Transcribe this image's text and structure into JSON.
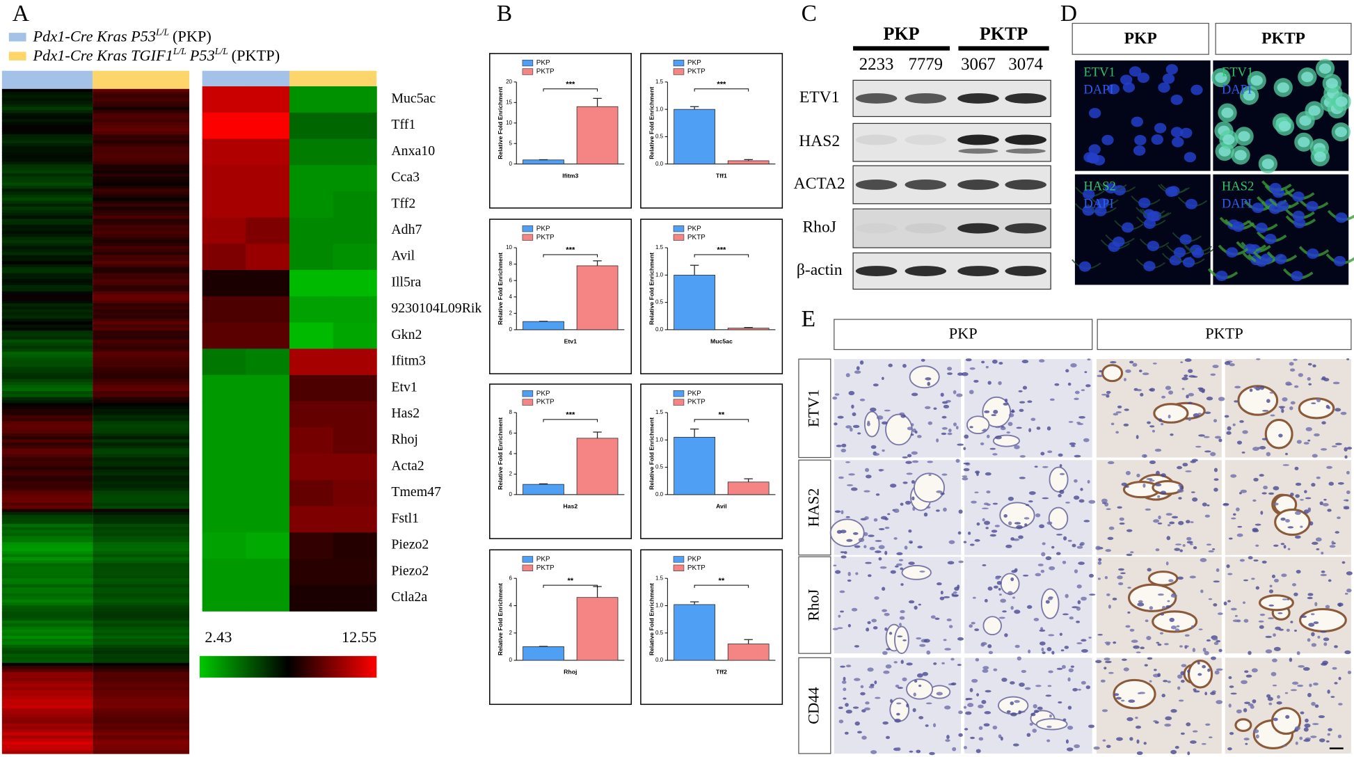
{
  "panel_labels": [
    "A",
    "B",
    "C",
    "D",
    "E"
  ],
  "heatmap": {
    "groups": [
      {
        "color": "#a4c2e8",
        "parts": [
          {
            "kind": "italic",
            "text": "Pdx1-Cre Kras P53"
          },
          {
            "kind": "sup",
            "text": "L/L"
          },
          {
            "kind": "plain",
            "text": "(PKP)"
          }
        ]
      },
      {
        "color": "#fcd56b",
        "parts": [
          {
            "kind": "italic",
            "text": "Pdx1-Cre Kras TGIF1"
          },
          {
            "kind": "sup",
            "text": "L/L"
          },
          {
            "kind": "italic",
            "text": "P53"
          },
          {
            "kind": "sup",
            "text": "L/L"
          },
          {
            "kind": "plain",
            "text": "(PKTP)"
          }
        ]
      }
    ],
    "genes": [
      "Muc5ac",
      "Tff1",
      "Anxa10",
      "Cca3",
      "Tff2",
      "Adh7",
      "Avil",
      "Ill5ra",
      "9230104L09Rik",
      "Gkn2",
      "Ifitm3",
      "Etv1",
      "Has2",
      "Rhoj",
      "Acta2",
      "Tmem47",
      "Fstl1",
      "Piezo2",
      "Piezo2",
      "Ctla2a"
    ],
    "values": [
      [
        11.5,
        11.5,
        4,
        4
      ],
      [
        12.5,
        12.5,
        5,
        5
      ],
      [
        11,
        11,
        4.5,
        4.5
      ],
      [
        10.8,
        10.8,
        4,
        4
      ],
      [
        10.8,
        10.8,
        4,
        4.2
      ],
      [
        10.5,
        10,
        4.2,
        4.2
      ],
      [
        10,
        10.5,
        4.2,
        4
      ],
      [
        8,
        8,
        3,
        3
      ],
      [
        9,
        9,
        3.6,
        3.6
      ],
      [
        9.3,
        9.3,
        3,
        3.5
      ],
      [
        4.6,
        4.4,
        10.8,
        10.8
      ],
      [
        3.8,
        3.8,
        9,
        9
      ],
      [
        3.8,
        3.8,
        9.5,
        9.5
      ],
      [
        3.8,
        3.8,
        9.8,
        9.5
      ],
      [
        3.8,
        3.8,
        10,
        10
      ],
      [
        3.8,
        3.8,
        9.5,
        9.8
      ],
      [
        3.8,
        3.8,
        10,
        10
      ],
      [
        3.6,
        3.4,
        8.5,
        8.2
      ],
      [
        3.8,
        3.8,
        8.3,
        8.3
      ],
      [
        3.8,
        3.8,
        8,
        8
      ]
    ],
    "scale_min": 2.43,
    "scale_max": 12.55
  },
  "chart_data": [
    {
      "type": "bar",
      "y_label": "Relative Fold Enrichment",
      "categories": [
        "Ifitm3"
      ],
      "annotation": "***",
      "ylim": [
        0,
        20
      ],
      "yticks": [
        0,
        5,
        10,
        15,
        20
      ],
      "series": [
        {
          "name": "PKP",
          "color": "#4f9ff5",
          "values": [
            1
          ],
          "errors": [
            0.05
          ]
        },
        {
          "name": "PKTP",
          "color": "#f58585",
          "values": [
            14
          ],
          "errors": [
            2
          ]
        }
      ]
    },
    {
      "type": "bar",
      "y_label": "Relative Fold Enrichment",
      "categories": [
        "Tff1"
      ],
      "annotation": "***",
      "ylim": [
        0,
        1.5
      ],
      "yticks": [
        {
          "value": 0,
          "label": "0.0"
        },
        {
          "value": 0.5,
          "label": "0.5"
        },
        {
          "value": 1,
          "label": "1.0"
        },
        {
          "value": 1.5,
          "label": "1.5"
        }
      ],
      "series": [
        {
          "name": "PKP",
          "color": "#4f9ff5",
          "values": [
            1
          ],
          "errors": [
            0.05
          ]
        },
        {
          "name": "PKTP",
          "color": "#f58585",
          "values": [
            0.06
          ],
          "errors": [
            0.02
          ]
        }
      ]
    },
    {
      "type": "bar",
      "y_label": "Relative Fold Enrichment",
      "categories": [
        "Etv1"
      ],
      "annotation": "***",
      "ylim": [
        0,
        10
      ],
      "yticks": [
        0,
        2,
        4,
        6,
        8,
        10
      ],
      "series": [
        {
          "name": "PKP",
          "color": "#4f9ff5",
          "values": [
            1
          ],
          "errors": [
            0.03
          ]
        },
        {
          "name": "PKTP",
          "color": "#f58585",
          "values": [
            7.8
          ],
          "errors": [
            0.6
          ]
        }
      ]
    },
    {
      "type": "bar",
      "y_label": "Relative Fold Enrichment",
      "categories": [
        "Muc5ac"
      ],
      "annotation": "***",
      "ylim": [
        0,
        1.5
      ],
      "yticks": [
        {
          "value": 0,
          "label": "0.0"
        },
        {
          "value": 0.5,
          "label": "0.5"
        },
        {
          "value": 1,
          "label": "1.0"
        },
        {
          "value": 1.5,
          "label": "1.5"
        }
      ],
      "series": [
        {
          "name": "PKP",
          "color": "#4f9ff5",
          "values": [
            1
          ],
          "errors": [
            0.18
          ]
        },
        {
          "name": "PKTP",
          "color": "#f58585",
          "values": [
            0.03
          ],
          "errors": [
            0.01
          ]
        }
      ]
    },
    {
      "type": "bar",
      "y_label": "Relative Fold Enrichment",
      "categories": [
        "Has2"
      ],
      "annotation": "***",
      "ylim": [
        0,
        8
      ],
      "yticks": [
        0,
        2,
        4,
        6,
        8
      ],
      "series": [
        {
          "name": "PKP",
          "color": "#4f9ff5",
          "values": [
            1
          ],
          "errors": [
            0.05
          ]
        },
        {
          "name": "PKTP",
          "color": "#f58585",
          "values": [
            5.5
          ],
          "errors": [
            0.6
          ]
        }
      ]
    },
    {
      "type": "bar",
      "y_label": "Relative Fold Enrichment",
      "categories": [
        "Avil"
      ],
      "annotation": "**",
      "ylim": [
        0,
        1.5
      ],
      "yticks": [
        {
          "value": 0,
          "label": "0.0"
        },
        {
          "value": 0.5,
          "label": "0.5"
        },
        {
          "value": 1,
          "label": "1.0"
        },
        {
          "value": 1.5,
          "label": "1.5"
        }
      ],
      "series": [
        {
          "name": "PKP",
          "color": "#4f9ff5",
          "values": [
            1.05
          ],
          "errors": [
            0.15
          ]
        },
        {
          "name": "PKTP",
          "color": "#f58585",
          "values": [
            0.23
          ],
          "errors": [
            0.06
          ]
        }
      ]
    },
    {
      "type": "bar",
      "y_label": "Relative Fold Enrichment",
      "categories": [
        "Rhoj"
      ],
      "annotation": "**",
      "ylim": [
        0,
        6
      ],
      "yticks": [
        0,
        2,
        4,
        6
      ],
      "series": [
        {
          "name": "PKP",
          "color": "#4f9ff5",
          "values": [
            1
          ],
          "errors": [
            0.02
          ]
        },
        {
          "name": "PKTP",
          "color": "#f58585",
          "values": [
            4.6
          ],
          "errors": [
            0.8
          ]
        }
      ]
    },
    {
      "type": "bar",
      "y_label": "Relative Fold Enrichment",
      "categories": [
        "Tff2"
      ],
      "annotation": "**",
      "ylim": [
        0,
        1.5
      ],
      "yticks": [
        {
          "value": 0,
          "label": "0.0"
        },
        {
          "value": 0.5,
          "label": "0.5"
        },
        {
          "value": 1,
          "label": "1.0"
        },
        {
          "value": 1.5,
          "label": "1.5"
        }
      ],
      "series": [
        {
          "name": "PKP",
          "color": "#4f9ff5",
          "values": [
            1.02
          ],
          "errors": [
            0.05
          ]
        },
        {
          "name": "PKTP",
          "color": "#f58585",
          "values": [
            0.3
          ],
          "errors": [
            0.08
          ]
        }
      ]
    }
  ],
  "western": {
    "groups": [
      "PKP",
      "PKTP"
    ],
    "samples": [
      "2233",
      "7779",
      "3067",
      "3074"
    ],
    "proteins": [
      "ETV1",
      "HAS2",
      "ACTA2",
      "RhoJ",
      "β-actin"
    ]
  },
  "immunofluorescence": {
    "columns": [
      "PKP",
      "PKTP"
    ],
    "rows": [
      {
        "stain": "ETV1",
        "counter": "DAPI"
      },
      {
        "stain": "HAS2",
        "counter": "DAPI"
      }
    ]
  },
  "ihc": {
    "columns": [
      "PKP",
      "PKTP"
    ],
    "rows": [
      "ETV1",
      "HAS2",
      "RhoJ",
      "CD44"
    ]
  }
}
